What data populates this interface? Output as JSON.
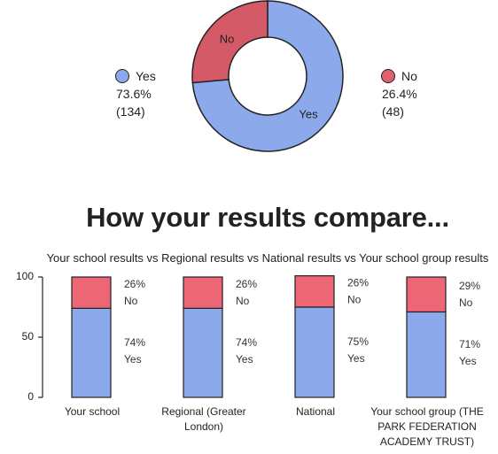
{
  "donut": {
    "slices": [
      {
        "label": "Yes",
        "value": 73.6,
        "color": "#8caaeb"
      },
      {
        "label": "No",
        "value": 26.4,
        "color": "#d45a67"
      }
    ],
    "legend": {
      "yes": {
        "label": "Yes",
        "percent": "73.6%",
        "count": "(134)",
        "color": "#8caaeb"
      },
      "no": {
        "label": "No",
        "percent": "26.4%",
        "count": "(48)",
        "color": "#e0606e"
      }
    }
  },
  "compare": {
    "title": "How your results compare...",
    "subtitle": "Your school results vs Regional results vs National results vs Your school group results"
  },
  "chart_data": [
    {
      "type": "pie",
      "categories": [
        "Yes",
        "No"
      ],
      "values": [
        73.6,
        26.4
      ],
      "counts": [
        134,
        48
      ]
    },
    {
      "type": "bar",
      "stacked": true,
      "categories": [
        [
          "Your school"
        ],
        [
          "Regional (Greater",
          "London)"
        ],
        [
          "National"
        ],
        [
          "Your school group (THE",
          "PARK FEDERATION",
          "ACADEMY TRUST)"
        ]
      ],
      "series": [
        {
          "name": "Yes",
          "values": [
            74,
            74,
            75,
            71
          ],
          "color": "#8caaeb"
        },
        {
          "name": "No",
          "values": [
            26,
            26,
            26,
            29
          ],
          "color": "#ec6675"
        }
      ],
      "ylim": [
        0,
        100
      ],
      "yticks": [
        0,
        50,
        100
      ],
      "grid": false
    }
  ]
}
